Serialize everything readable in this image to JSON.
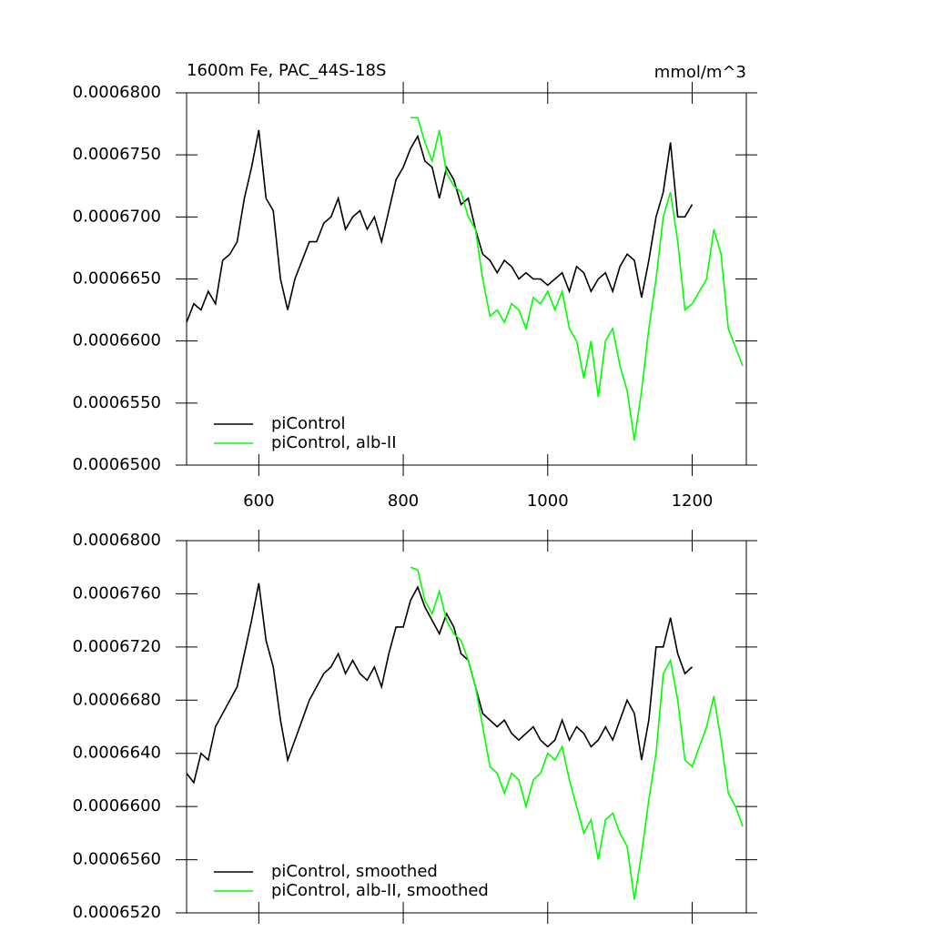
{
  "chart_data": [
    {
      "type": "line",
      "title": "1600m Fe, PAC_44S-18S",
      "units_label": "mmol/m^3",
      "x": [
        500,
        510,
        520,
        530,
        540,
        550,
        560,
        570,
        580,
        590,
        600,
        610,
        620,
        630,
        640,
        650,
        660,
        670,
        680,
        690,
        700,
        710,
        720,
        730,
        740,
        750,
        760,
        770,
        780,
        790,
        800,
        810,
        820,
        830,
        840,
        850,
        860,
        870,
        880,
        890,
        900,
        910,
        920,
        930,
        940,
        950,
        960,
        970,
        980,
        990,
        1000,
        1010,
        1020,
        1030,
        1040,
        1050,
        1060,
        1070,
        1080,
        1090,
        1100,
        1110,
        1120,
        1130,
        1140,
        1150,
        1160,
        1170,
        1180,
        1190,
        1200,
        1210,
        1220,
        1230,
        1240,
        1250,
        1260,
        1270
      ],
      "series": [
        {
          "name": "piControl",
          "color": "#000000",
          "values": [
            0.0006615,
            0.000663,
            0.0006625,
            0.000664,
            0.000663,
            0.0006665,
            0.000667,
            0.000668,
            0.0006715,
            0.000674,
            0.000677,
            0.0006715,
            0.0006705,
            0.000665,
            0.0006625,
            0.000665,
            0.0006665,
            0.000668,
            0.000668,
            0.0006695,
            0.00067,
            0.0006715,
            0.000669,
            0.00067,
            0.0006705,
            0.000669,
            0.00067,
            0.000668,
            0.0006705,
            0.000673,
            0.000674,
            0.0006755,
            0.0006765,
            0.0006745,
            0.000674,
            0.0006715,
            0.000674,
            0.000673,
            0.000671,
            0.0006715,
            0.000669,
            0.000667,
            0.0006665,
            0.0006655,
            0.0006665,
            0.000666,
            0.000665,
            0.0006655,
            0.000665,
            0.000665,
            0.0006645,
            0.000665,
            0.0006655,
            0.000664,
            0.000666,
            0.0006655,
            0.000664,
            0.000665,
            0.0006655,
            0.000664,
            0.000666,
            0.000667,
            0.0006665,
            0.0006635,
            0.0006665,
            0.00067,
            0.000672,
            0.000676,
            0.00067,
            0.00067,
            0.000671,
            null,
            null,
            null,
            null,
            null,
            null,
            null
          ]
        },
        {
          "name": "piControl, alb-II",
          "color": "#00ff00",
          "values": [
            null,
            null,
            null,
            null,
            null,
            null,
            null,
            null,
            null,
            null,
            null,
            null,
            null,
            null,
            null,
            null,
            null,
            null,
            null,
            null,
            null,
            null,
            null,
            null,
            null,
            null,
            null,
            null,
            null,
            null,
            null,
            0.000678,
            0.000678,
            0.000676,
            0.0006745,
            0.000677,
            0.0006735,
            0.0006725,
            0.000672,
            0.00067,
            0.000669,
            0.000665,
            0.000662,
            0.0006625,
            0.0006615,
            0.000663,
            0.0006625,
            0.000661,
            0.0006635,
            0.000663,
            0.000664,
            0.0006625,
            0.000664,
            0.000661,
            0.00066,
            0.000657,
            0.00066,
            0.0006555,
            0.00066,
            0.000661,
            0.000658,
            0.000656,
            0.000652,
            0.000656,
            0.000661,
            0.000665,
            0.00067,
            0.000672,
            0.000668,
            0.0006625,
            0.000663,
            0.000664,
            0.000665,
            0.000669,
            0.000667,
            0.000661,
            0.0006595,
            0.000658
          ]
        }
      ],
      "xlim": [
        500,
        1275
      ],
      "ylim": [
        0.00065,
        0.00068
      ],
      "xticks": [
        600,
        800,
        1000,
        1200
      ],
      "yticks": [
        {
          "value": 0.00065,
          "label": "0.0006500"
        },
        {
          "value": 0.000655,
          "label": "0.0006550"
        },
        {
          "value": 0.00066,
          "label": "0.0006600"
        },
        {
          "value": 0.000665,
          "label": "0.0006650"
        },
        {
          "value": 0.00067,
          "label": "0.0006700"
        },
        {
          "value": 0.000675,
          "label": "0.0006750"
        },
        {
          "value": 0.00068,
          "label": "0.0006800"
        }
      ],
      "grid": false,
      "legend": "lower left"
    },
    {
      "type": "line",
      "x": [
        500,
        510,
        520,
        530,
        540,
        550,
        560,
        570,
        580,
        590,
        600,
        610,
        620,
        630,
        640,
        650,
        660,
        670,
        680,
        690,
        700,
        710,
        720,
        730,
        740,
        750,
        760,
        770,
        780,
        790,
        800,
        810,
        820,
        830,
        840,
        850,
        860,
        870,
        880,
        890,
        900,
        910,
        920,
        930,
        940,
        950,
        960,
        970,
        980,
        990,
        1000,
        1010,
        1020,
        1030,
        1040,
        1050,
        1060,
        1070,
        1080,
        1090,
        1100,
        1110,
        1120,
        1130,
        1140,
        1150,
        1160,
        1170,
        1180,
        1190,
        1200,
        1210,
        1220,
        1230,
        1240,
        1250,
        1260,
        1270
      ],
      "series": [
        {
          "name": "piControl, smoothed",
          "color": "#000000",
          "values": [
            0.0006625,
            0.0006618,
            0.000664,
            0.0006635,
            0.000666,
            0.000667,
            0.000668,
            0.000669,
            0.0006715,
            0.000674,
            0.0006768,
            0.0006725,
            0.0006705,
            0.0006665,
            0.0006635,
            0.000665,
            0.0006665,
            0.000668,
            0.000669,
            0.00067,
            0.0006705,
            0.0006715,
            0.00067,
            0.000671,
            0.00067,
            0.0006695,
            0.0006705,
            0.000669,
            0.0006715,
            0.0006735,
            0.0006735,
            0.0006755,
            0.0006765,
            0.000675,
            0.000674,
            0.000673,
            0.0006745,
            0.0006735,
            0.0006715,
            0.000671,
            0.000669,
            0.000667,
            0.0006665,
            0.000666,
            0.0006665,
            0.0006655,
            0.000665,
            0.0006655,
            0.000666,
            0.000665,
            0.0006645,
            0.000665,
            0.0006665,
            0.000665,
            0.000666,
            0.0006655,
            0.0006645,
            0.000665,
            0.000666,
            0.000665,
            0.0006665,
            0.000668,
            0.000667,
            0.0006635,
            0.0006665,
            0.000672,
            0.000672,
            0.0006742,
            0.0006715,
            0.00067,
            0.0006705,
            null,
            null,
            null,
            null,
            null,
            null,
            null
          ]
        },
        {
          "name": "piControl, alb-II, smoothed",
          "color": "#00ff00",
          "values": [
            null,
            null,
            null,
            null,
            null,
            null,
            null,
            null,
            null,
            null,
            null,
            null,
            null,
            null,
            null,
            null,
            null,
            null,
            null,
            null,
            null,
            null,
            null,
            null,
            null,
            null,
            null,
            null,
            null,
            null,
            null,
            0.000678,
            0.0006778,
            0.0006755,
            0.0006745,
            0.0006762,
            0.000674,
            0.000673,
            0.0006725,
            0.000671,
            0.000669,
            0.000666,
            0.000663,
            0.0006625,
            0.000661,
            0.0006625,
            0.000662,
            0.00066,
            0.000662,
            0.0006625,
            0.000664,
            0.0006635,
            0.0006645,
            0.000662,
            0.00066,
            0.000658,
            0.000659,
            0.000656,
            0.000659,
            0.0006595,
            0.000658,
            0.000657,
            0.000653,
            0.0006565,
            0.0006605,
            0.000664,
            0.00067,
            0.000671,
            0.000668,
            0.0006635,
            0.000663,
            0.0006645,
            0.000666,
            0.0006683,
            0.000665,
            0.000661,
            0.00066,
            0.0006585
          ]
        }
      ],
      "xlim": [
        500,
        1275
      ],
      "ylim": [
        0.000652,
        0.00068
      ],
      "xticks": [
        600,
        800,
        1000,
        1200
      ],
      "yticks": [
        {
          "value": 0.000652,
          "label": "0.0006520"
        },
        {
          "value": 0.000656,
          "label": "0.0006560"
        },
        {
          "value": 0.00066,
          "label": "0.0006600"
        },
        {
          "value": 0.000664,
          "label": "0.0006640"
        },
        {
          "value": 0.000668,
          "label": "0.0006680"
        },
        {
          "value": 0.000672,
          "label": "0.0006720"
        },
        {
          "value": 0.000676,
          "label": "0.0006760"
        },
        {
          "value": 0.00068,
          "label": "0.0006800"
        }
      ],
      "grid": false,
      "legend": "lower left"
    }
  ]
}
